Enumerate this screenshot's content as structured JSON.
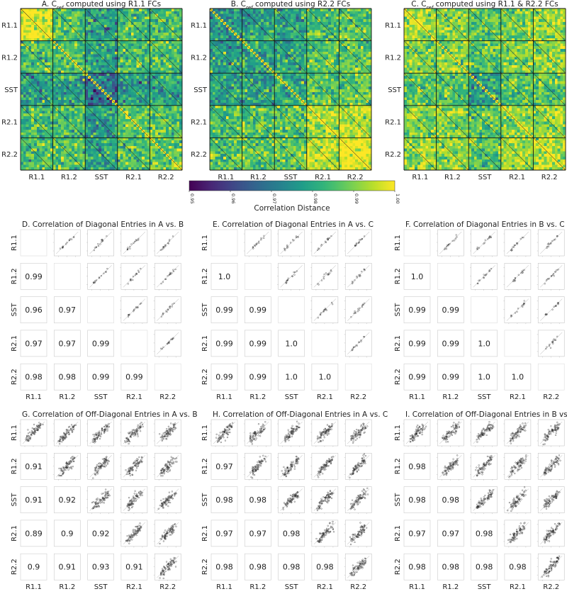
{
  "figure": {
    "conditions": [
      "R1.1",
      "R1.2",
      "SST",
      "R2.1",
      "R2.2"
    ],
    "colorbar": {
      "label": "Correlation Distance",
      "ticks": [
        "0.95",
        "0.96",
        "0.97",
        "0.98",
        "0.99",
        "1.00"
      ],
      "range": [
        0.95,
        1.0
      ]
    }
  },
  "chart_data": [
    {
      "type": "heatmap",
      "title_prefix": "A. C",
      "title_sub": "ref",
      "title_suffix": " computed using R1.1 FCs",
      "xlabels": [
        "R1.1",
        "R1.2",
        "SST",
        "R2.1",
        "R2.2"
      ],
      "ylabels": [
        "R1.1",
        "R1.2",
        "SST",
        "R2.1",
        "R2.2"
      ],
      "block_means": [
        [
          0.998,
          0.985,
          0.978,
          0.984,
          0.985
        ],
        [
          0.985,
          0.985,
          0.978,
          0.984,
          0.985
        ],
        [
          0.978,
          0.978,
          0.968,
          0.978,
          0.979
        ],
        [
          0.984,
          0.984,
          0.978,
          0.986,
          0.986
        ],
        [
          0.985,
          0.985,
          0.979,
          0.986,
          0.987
        ]
      ],
      "colorscale": "viridis",
      "vmin": 0.95,
      "vmax": 1.0
    },
    {
      "type": "heatmap",
      "title_prefix": "B. C",
      "title_sub": "ref",
      "title_suffix": " computed using R2.2 FCs",
      "xlabels": [
        "R1.1",
        "R1.2",
        "SST",
        "R2.1",
        "R2.2"
      ],
      "ylabels": [
        "R1.1",
        "R1.2",
        "SST",
        "R2.1",
        "R2.2"
      ],
      "block_means": [
        [
          0.976,
          0.978,
          0.978,
          0.985,
          0.986
        ],
        [
          0.978,
          0.979,
          0.979,
          0.986,
          0.987
        ],
        [
          0.978,
          0.979,
          0.98,
          0.986,
          0.988
        ],
        [
          0.985,
          0.986,
          0.986,
          0.993,
          0.994
        ],
        [
          0.986,
          0.987,
          0.988,
          0.994,
          0.999
        ]
      ],
      "colorscale": "viridis",
      "vmin": 0.95,
      "vmax": 1.0
    },
    {
      "type": "heatmap",
      "title_prefix": "C. C",
      "title_sub": "ref",
      "title_suffix": " computed using R1.1 & R2.2 FCs",
      "xlabels": [
        "R1.1",
        "R1.2",
        "SST",
        "R2.1",
        "R2.2"
      ],
      "ylabels": [
        "R1.1",
        "R1.2",
        "SST",
        "R2.1",
        "R2.2"
      ],
      "block_means": [
        [
          0.993,
          0.99,
          0.986,
          0.99,
          0.992
        ],
        [
          0.99,
          0.99,
          0.986,
          0.99,
          0.991
        ],
        [
          0.986,
          0.986,
          0.978,
          0.986,
          0.987
        ],
        [
          0.99,
          0.99,
          0.986,
          0.991,
          0.992
        ],
        [
          0.992,
          0.991,
          0.987,
          0.992,
          0.994
        ]
      ],
      "colorscale": "viridis",
      "vmin": 0.95,
      "vmax": 1.0
    },
    {
      "type": "scatter",
      "title": "D. Correlation of Diagonal Entries in A vs. B",
      "labels": [
        "R1.1",
        "R1.2",
        "SST",
        "R2.1",
        "R2.2"
      ],
      "correlations": [
        [
          1,
          0
        ],
        [
          2,
          0
        ],
        [
          2,
          1
        ],
        [
          3,
          0
        ],
        [
          3,
          1
        ],
        [
          3,
          2
        ],
        [
          4,
          0
        ],
        [
          4,
          1
        ],
        [
          4,
          2
        ],
        [
          4,
          3
        ]
      ],
      "values": [
        "0.99",
        "0.96",
        "0.97",
        "0.97",
        "0.97",
        "0.99",
        "0.98",
        "0.98",
        "0.99",
        "0.99"
      ],
      "kind": "diagonal"
    },
    {
      "type": "scatter",
      "title": "E. Correlation of Diagonal Entries in A vs. C",
      "labels": [
        "R1.1",
        "R1.2",
        "SST",
        "R2.1",
        "R2.2"
      ],
      "correlations": [
        [
          1,
          0
        ],
        [
          2,
          0
        ],
        [
          2,
          1
        ],
        [
          3,
          0
        ],
        [
          3,
          1
        ],
        [
          3,
          2
        ],
        [
          4,
          0
        ],
        [
          4,
          1
        ],
        [
          4,
          2
        ],
        [
          4,
          3
        ]
      ],
      "values": [
        "1.0",
        "0.99",
        "0.99",
        "0.99",
        "0.99",
        "1.0",
        "0.99",
        "0.99",
        "1.0",
        "1.0"
      ],
      "kind": "diagonal"
    },
    {
      "type": "scatter",
      "title": "F. Correlation of Diagonal Entries in B vs. C",
      "labels": [
        "R1.1",
        "R1.2",
        "SST",
        "R2.1",
        "R2.2"
      ],
      "correlations": [
        [
          1,
          0
        ],
        [
          2,
          0
        ],
        [
          2,
          1
        ],
        [
          3,
          0
        ],
        [
          3,
          1
        ],
        [
          3,
          2
        ],
        [
          4,
          0
        ],
        [
          4,
          1
        ],
        [
          4,
          2
        ],
        [
          4,
          3
        ]
      ],
      "values": [
        "1.0",
        "0.99",
        "0.99",
        "0.99",
        "0.99",
        "1.0",
        "0.99",
        "0.99",
        "1.0",
        "1.0"
      ],
      "kind": "diagonal"
    },
    {
      "type": "scatter",
      "title": "G. Correlation of Off-Diagonal Entries in A vs. B",
      "labels": [
        "R1.1",
        "R1.2",
        "SST",
        "R2.1",
        "R2.2"
      ],
      "correlations": [
        [
          1,
          0
        ],
        [
          2,
          0
        ],
        [
          2,
          1
        ],
        [
          3,
          0
        ],
        [
          3,
          1
        ],
        [
          3,
          2
        ],
        [
          4,
          0
        ],
        [
          4,
          1
        ],
        [
          4,
          2
        ],
        [
          4,
          3
        ]
      ],
      "values": [
        "0.91",
        "0.91",
        "0.92",
        "0.89",
        "0.9",
        "0.92",
        "0.9",
        "0.91",
        "0.93",
        "0.91"
      ],
      "kind": "offdiagonal"
    },
    {
      "type": "scatter",
      "title": "H. Correlation of Off-Diagonal Entries in A vs. C",
      "labels": [
        "R1.1",
        "R1.2",
        "SST",
        "R2.1",
        "R2.2"
      ],
      "correlations": [
        [
          1,
          0
        ],
        [
          2,
          0
        ],
        [
          2,
          1
        ],
        [
          3,
          0
        ],
        [
          3,
          1
        ],
        [
          3,
          2
        ],
        [
          4,
          0
        ],
        [
          4,
          1
        ],
        [
          4,
          2
        ],
        [
          4,
          3
        ]
      ],
      "values": [
        "0.97",
        "0.98",
        "0.98",
        "0.97",
        "0.97",
        "0.98",
        "0.98",
        "0.98",
        "0.98",
        "0.98"
      ],
      "kind": "offdiagonal"
    },
    {
      "type": "scatter",
      "title": "I. Correlation of Off-Diagonal Entries in B vs. C",
      "labels": [
        "R1.1",
        "R1.2",
        "SST",
        "R2.1",
        "R2.2"
      ],
      "correlations": [
        [
          1,
          0
        ],
        [
          2,
          0
        ],
        [
          2,
          1
        ],
        [
          3,
          0
        ],
        [
          3,
          1
        ],
        [
          3,
          2
        ],
        [
          4,
          0
        ],
        [
          4,
          1
        ],
        [
          4,
          2
        ],
        [
          4,
          3
        ]
      ],
      "values": [
        "0.98",
        "0.98",
        "0.98",
        "0.97",
        "0.97",
        "0.98",
        "0.98",
        "0.98",
        "0.98",
        "0.98"
      ],
      "kind": "offdiagonal"
    }
  ]
}
